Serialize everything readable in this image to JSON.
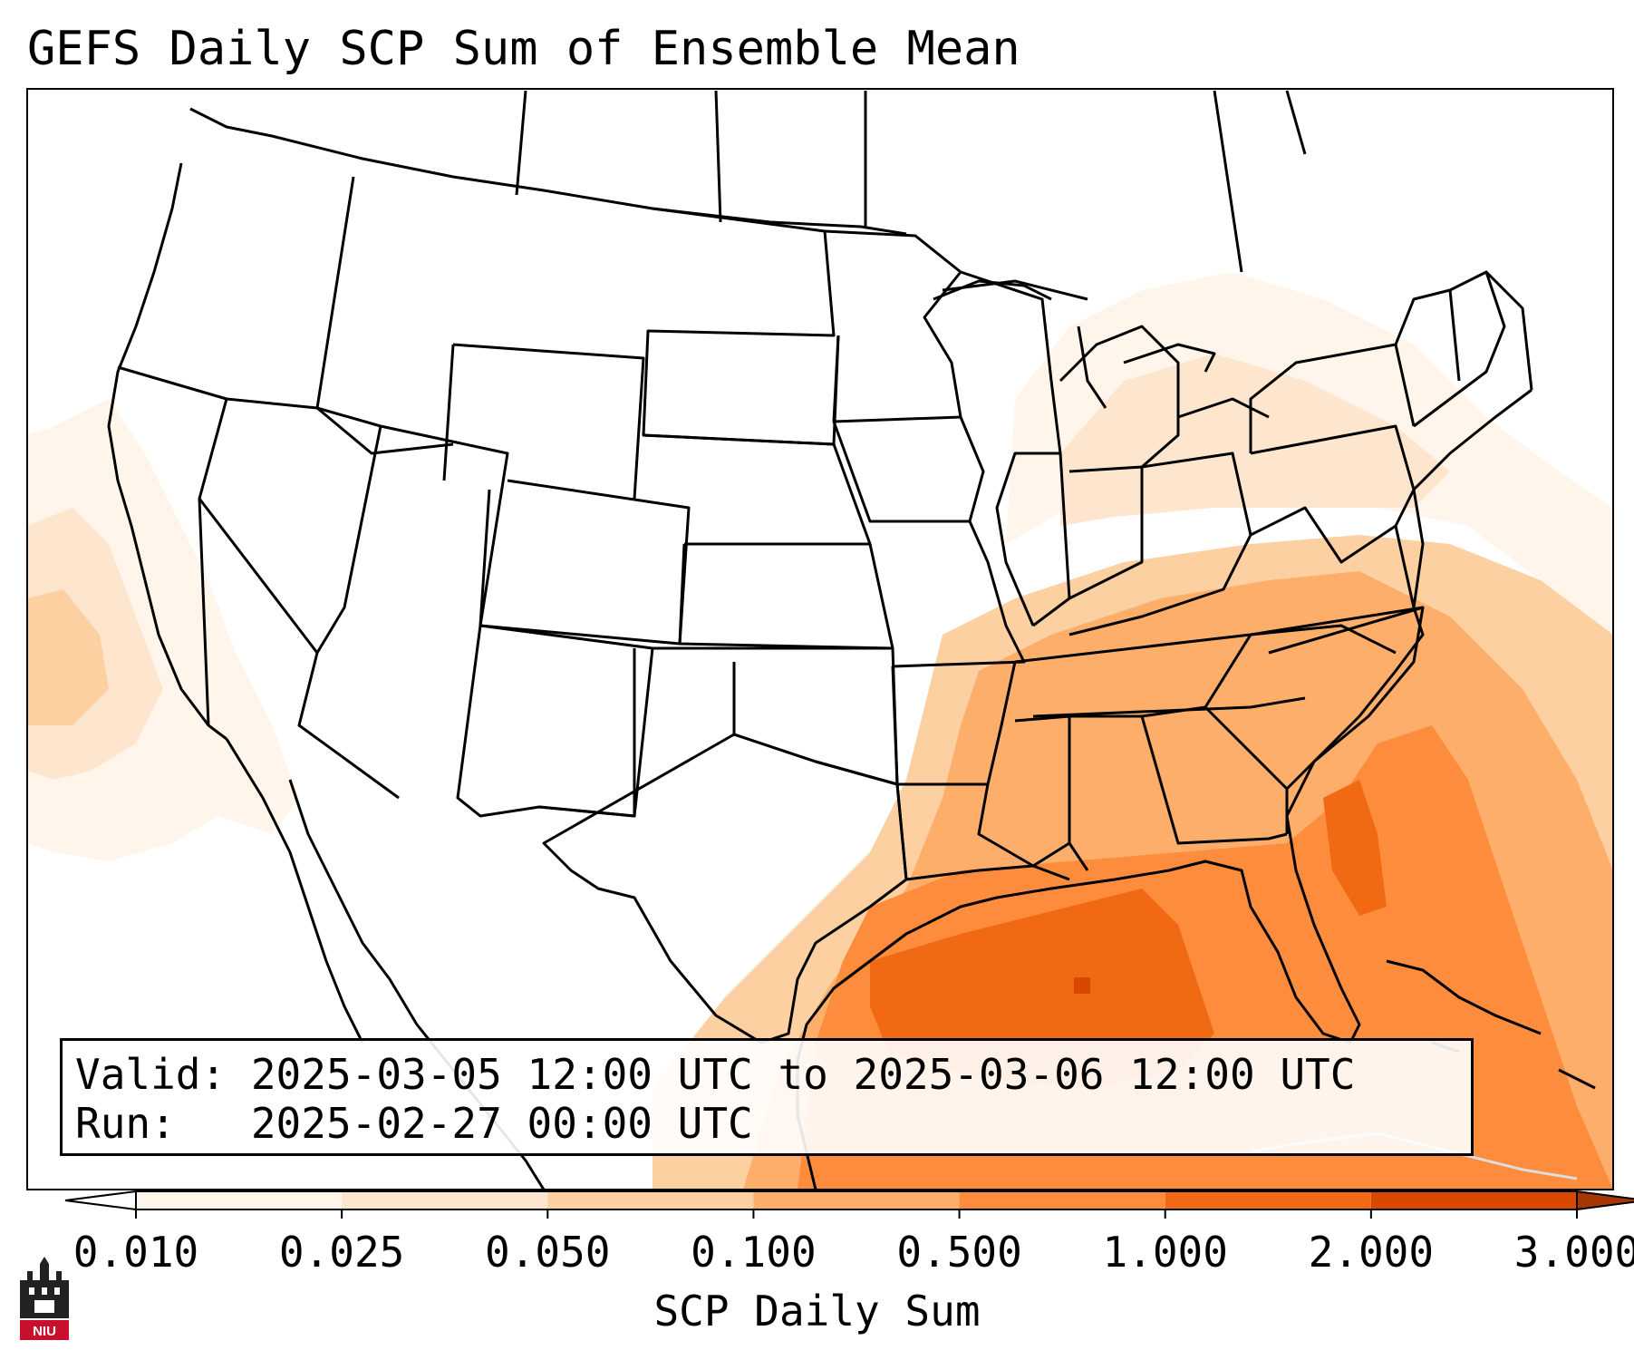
{
  "title": "GEFS Daily SCP Sum of Ensemble Mean",
  "info": {
    "valid": "Valid: 2025-03-05 12:00 UTC to 2025-03-06 12:00 UTC",
    "run": "Run:   2025-02-27 00:00 UTC"
  },
  "colorbar": {
    "label": "SCP Daily Sum",
    "ticks": [
      "0.010",
      "0.025",
      "0.050",
      "0.100",
      "0.500",
      "1.000",
      "2.000",
      "3.000"
    ],
    "colors": [
      "#fff5eb",
      "#fee6ce",
      "#fdd0a2",
      "#fdae6b",
      "#fd8d3c",
      "#f16913",
      "#d94801",
      "#a63603"
    ],
    "under_color": "#ffffff",
    "over_color": "#a63603"
  },
  "logo": {
    "icon": "niu-castle-logo",
    "text": "NIU"
  }
}
